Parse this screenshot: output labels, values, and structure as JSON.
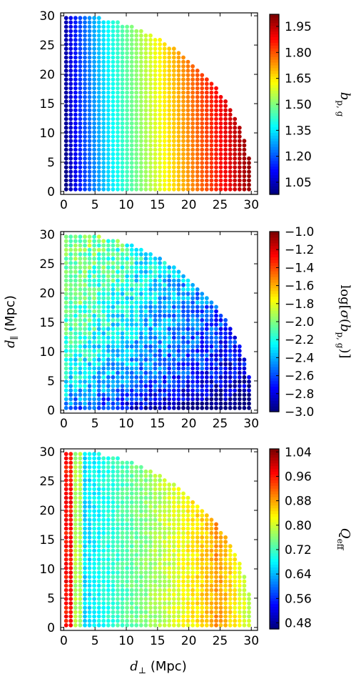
{
  "chart_data": {
    "type": "scatter",
    "shared_xlabel": "d_⊥ (Mpc)",
    "shared_ylabel": "d_∥ (Mpc)",
    "panels": [
      {
        "id": "bias",
        "colorbar_label": "b_p,g",
        "colormap": "jet",
        "clim": [
          0.98,
          2.02
        ],
        "colorbar_ticks": [
          "1.05",
          "1.20",
          "1.35",
          "1.50",
          "1.65",
          "1.80",
          "1.95"
        ],
        "colorbar_tick_values": [
          1.05,
          1.2,
          1.35,
          1.5,
          1.65,
          1.8,
          1.95
        ],
        "xlim": [
          -0.5,
          31
        ],
        "ylim": [
          -0.5,
          30.5
        ],
        "x_ticks": [
          0,
          5,
          10,
          15,
          20,
          25,
          30
        ],
        "y_ticks": [
          0,
          5,
          10,
          15,
          20,
          25,
          30
        ],
        "grid_spacing": 0.75,
        "grid_start": 0.375,
        "max_radius": 30,
        "trend": "value increases with d_perp from about 1.0 at small d_perp to about 2.0 at d_perp ≈ 30"
      },
      {
        "id": "log-sigma-bias",
        "colorbar_label": "log[σ(b_p,g)]",
        "colormap": "jet",
        "clim": [
          -3.0,
          -1.0
        ],
        "colorbar_ticks": [
          "−1.0",
          "−1.2",
          "−1.4",
          "−1.6",
          "−1.8",
          "−2.0",
          "−2.2",
          "−2.4",
          "−2.6",
          "−2.8",
          "−3.0"
        ],
        "colorbar_tick_values": [
          -1.0,
          -1.2,
          -1.4,
          -1.6,
          -1.8,
          -2.0,
          -2.2,
          -2.4,
          -2.6,
          -2.8,
          -3.0
        ],
        "xlim": [
          -0.5,
          31
        ],
        "ylim": [
          -0.5,
          30.5
        ],
        "x_ticks": [
          0,
          5,
          10,
          15,
          20,
          25,
          30
        ],
        "y_ticks": [
          0,
          5,
          10,
          15,
          20,
          25,
          30
        ],
        "grid_spacing": 0.75,
        "grid_start": 0.375,
        "max_radius": 30,
        "trend": "about −2.2 near small d_perp and large d_par, decreasing to about −2.9 at small d_par and large d_perp"
      },
      {
        "id": "q-eff",
        "colorbar_label": "Q_eff",
        "colormap": "jet",
        "clim": [
          0.46,
          1.05
        ],
        "colorbar_ticks": [
          "1.04",
          "0.96",
          "0.88",
          "0.80",
          "0.72",
          "0.64",
          "0.56",
          "0.48"
        ],
        "colorbar_tick_values": [
          1.04,
          0.96,
          0.88,
          0.8,
          0.72,
          0.64,
          0.56,
          0.48
        ],
        "xlim": [
          -0.5,
          31
        ],
        "ylim": [
          -0.5,
          30.5
        ],
        "x_ticks": [
          0,
          5,
          10,
          15,
          20,
          25,
          30
        ],
        "y_ticks": [
          0,
          5,
          10,
          15,
          20,
          25,
          30
        ],
        "grid_spacing": 0.75,
        "grid_start": 0.375,
        "max_radius": 30,
        "trend": "about 0.95 at d_perp < 1.5, about 0.70 near d_perp ≈ 3–6, rising to about 0.90 at d_perp ≈ 25"
      }
    ]
  }
}
